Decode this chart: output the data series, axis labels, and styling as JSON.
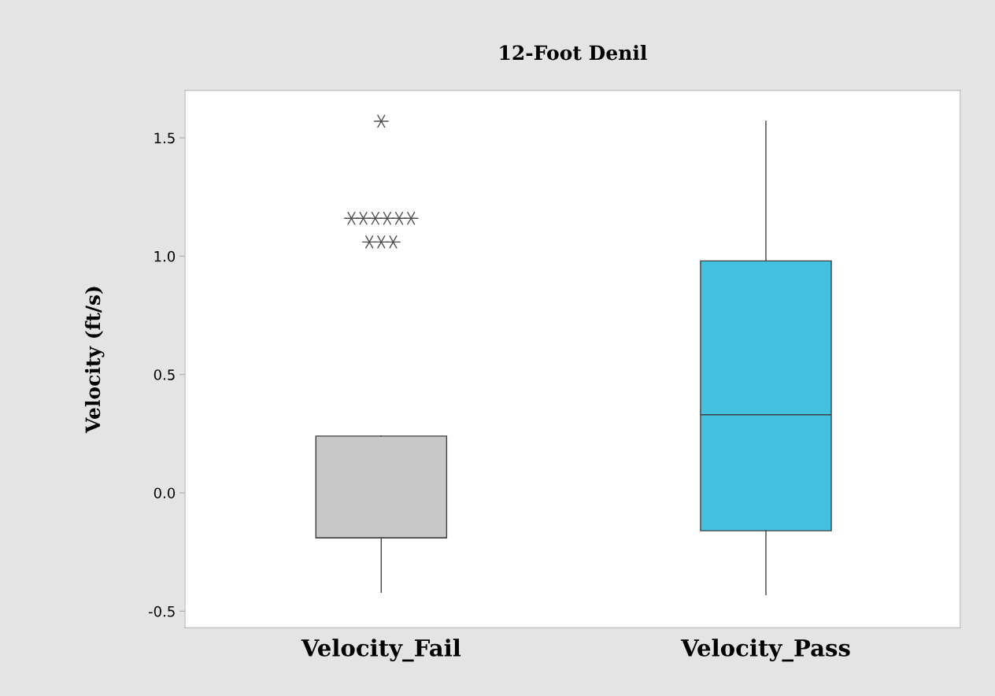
{
  "chart_data": {
    "type": "box",
    "title": "12-Foot Denil",
    "ylabel": "Velocity (ft/s)",
    "categories": [
      "Velocity_Fail",
      "Velocity_Pass"
    ],
    "boxes": [
      {
        "low": -0.42,
        "q1": -0.19,
        "median": -0.19,
        "q3": 0.24,
        "high": 0.24,
        "outliers": [
          1.57,
          1.16,
          1.16,
          1.16,
          1.16,
          1.16,
          1.16,
          1.06,
          1.06,
          1.06
        ]
      },
      {
        "low": -0.43,
        "q1": -0.16,
        "median": 0.33,
        "q3": 0.98,
        "high": 1.57
      }
    ],
    "colors": [
      "#c8c8c8",
      "#45c1e0"
    ],
    "ylim": [
      -0.57,
      1.7
    ],
    "yticks": [
      -0.5,
      {
        "value": 0,
        "label": "0.0"
      },
      0.5,
      {
        "value": 1,
        "label": "1.0"
      },
      1.5
    ],
    "grid": false,
    "legend": false
  }
}
